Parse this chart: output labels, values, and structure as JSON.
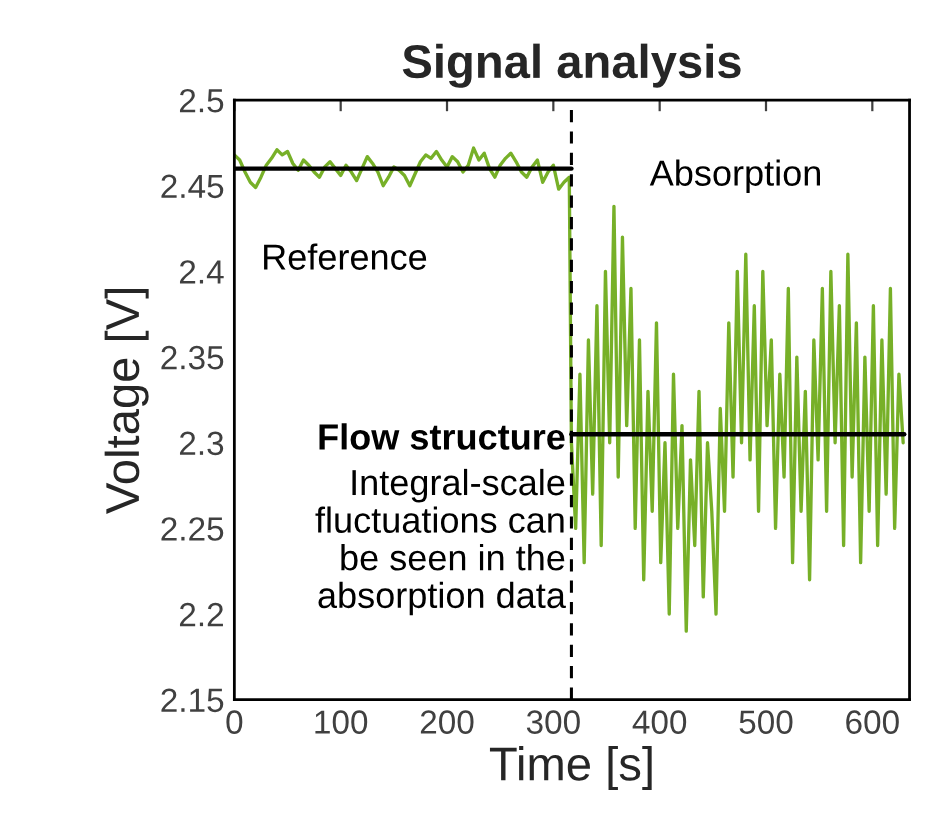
{
  "chart_data": {
    "type": "line",
    "title": "Signal analysis",
    "xlabel": "Time [s]",
    "ylabel": "Voltage [V]",
    "xlim": [
      0,
      635
    ],
    "ylim": [
      2.15,
      2.5
    ],
    "xticks": [
      0,
      100,
      200,
      300,
      400,
      500,
      600
    ],
    "yticks": [
      2.15,
      2.2,
      2.25,
      2.3,
      2.35,
      2.4,
      2.45,
      2.5
    ],
    "grid": false,
    "legend": false,
    "series": [
      {
        "color": "#77b028",
        "x": [
          0,
          5,
          10,
          15,
          20,
          25,
          30,
          35,
          40,
          45,
          50,
          55,
          60,
          65,
          70,
          75,
          80,
          85,
          90,
          95,
          100,
          105,
          110,
          115,
          120,
          125,
          130,
          135,
          140,
          145,
          150,
          155,
          160,
          165,
          170,
          175,
          180,
          185,
          190,
          195,
          200,
          205,
          210,
          215,
          220,
          225,
          230,
          235,
          240,
          245,
          250,
          255,
          260,
          265,
          270,
          275,
          280,
          285,
          290,
          295,
          300,
          305,
          310,
          315,
          317,
          321,
          325,
          329,
          333,
          337,
          341,
          345,
          349,
          353,
          357,
          361,
          365,
          369,
          373,
          377,
          381,
          385,
          389,
          393,
          397,
          401,
          405,
          409,
          413,
          417,
          421,
          425,
          429,
          433,
          437,
          441,
          445,
          449,
          453,
          457,
          461,
          465,
          469,
          473,
          477,
          481,
          485,
          489,
          493,
          497,
          501,
          505,
          509,
          513,
          517,
          521,
          525,
          529,
          533,
          537,
          541,
          545,
          549,
          553,
          557,
          561,
          565,
          569,
          573,
          577,
          581,
          585,
          589,
          593,
          597,
          601,
          605,
          609,
          613,
          617,
          621,
          625,
          629
        ],
        "values": [
          2.468,
          2.465,
          2.458,
          2.452,
          2.449,
          2.455,
          2.462,
          2.466,
          2.471,
          2.468,
          2.47,
          2.463,
          2.459,
          2.465,
          2.462,
          2.458,
          2.455,
          2.461,
          2.464,
          2.46,
          2.456,
          2.462,
          2.458,
          2.453,
          2.46,
          2.467,
          2.463,
          2.458,
          2.45,
          2.455,
          2.461,
          2.459,
          2.456,
          2.45,
          2.457,
          2.464,
          2.468,
          2.466,
          2.47,
          2.465,
          2.461,
          2.467,
          2.464,
          2.458,
          2.462,
          2.472,
          2.465,
          2.469,
          2.46,
          2.455,
          2.462,
          2.466,
          2.469,
          2.464,
          2.458,
          2.455,
          2.461,
          2.465,
          2.452,
          2.458,
          2.462,
          2.448,
          2.452,
          2.455,
          2.3,
          2.25,
          2.34,
          2.23,
          2.36,
          2.27,
          2.38,
          2.24,
          2.4,
          2.3,
          2.438,
          2.28,
          2.42,
          2.31,
          2.39,
          2.25,
          2.36,
          2.22,
          2.33,
          2.26,
          2.37,
          2.23,
          2.3,
          2.2,
          2.34,
          2.25,
          2.31,
          2.19,
          2.29,
          2.24,
          2.33,
          2.21,
          2.3,
          2.26,
          2.2,
          2.32,
          2.26,
          2.37,
          2.28,
          2.4,
          2.3,
          2.41,
          2.29,
          2.38,
          2.26,
          2.4,
          2.31,
          2.36,
          2.25,
          2.34,
          2.28,
          2.39,
          2.23,
          2.35,
          2.26,
          2.33,
          2.22,
          2.36,
          2.29,
          2.39,
          2.26,
          2.4,
          2.3,
          2.38,
          2.24,
          2.41,
          2.28,
          2.37,
          2.23,
          2.35,
          2.26,
          2.38,
          2.24,
          2.36,
          2.27,
          2.39,
          2.25,
          2.34,
          2.3
        ]
      },
      {
        "color": "#000000",
        "x": [
          0,
          317
        ],
        "values": [
          2.46,
          2.46
        ]
      },
      {
        "color": "#000000",
        "x": [
          317,
          630
        ],
        "values": [
          2.305,
          2.305
        ]
      }
    ],
    "ref_lines": [
      {
        "axis": "x",
        "value": 317,
        "color": "#000000",
        "line_style": "dashed"
      }
    ],
    "annotations": [
      "Reference",
      "Absorption",
      "Flow structure",
      "Integral-scale\nfluctuations can\nbe seen in the\nabsorption data"
    ]
  }
}
